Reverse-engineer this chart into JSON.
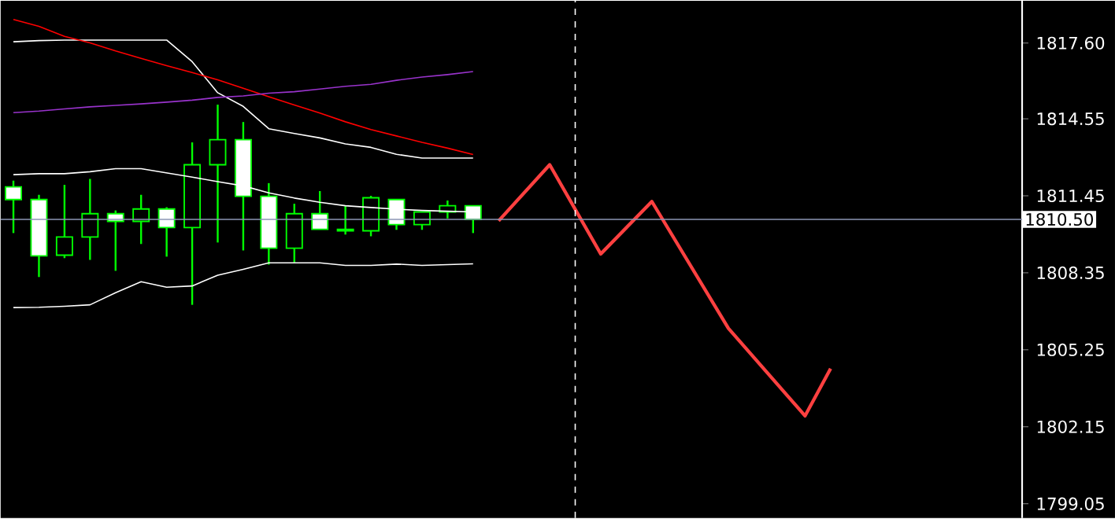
{
  "chart_data": {
    "type": "candlestick",
    "ylim": [
      1798.48,
      1819.3
    ],
    "tick_labels": "y",
    "categories": [
      null,
      null,
      null,
      null,
      null,
      null,
      null,
      null,
      null,
      null,
      null,
      null,
      null,
      null,
      null,
      null,
      null,
      null,
      null,
      null,
      null,
      null,
      null,
      null,
      null,
      null,
      null,
      null,
      null,
      null,
      null,
      null,
      null,
      null,
      null,
      null,
      null,
      null,
      null,
      null
    ],
    "yticks": [
      1799.05,
      1802.15,
      1805.25,
      1808.35,
      1811.45,
      1814.55,
      {
        "value": 1817.6,
        "label": "1817.60"
      }
    ],
    "ref_lines": [
      {
        "axis": "y",
        "value": 1810.5,
        "label": "1810.50",
        "color": "#8c96b4"
      }
    ],
    "series": [
      {
        "type": "line",
        "color": "#ffffff",
        "values": [
          1817.65,
          1817.7,
          1817.72,
          1817.72,
          1817.72,
          1817.72,
          1817.72,
          1816.85,
          1815.6,
          1815.05,
          1814.15,
          1813.96,
          1813.78,
          1813.54,
          1813.4,
          1813.12,
          1812.97,
          1812.97,
          1812.97,
          null,
          null,
          null,
          null,
          null,
          null,
          null,
          null,
          null,
          null,
          null,
          null,
          null,
          null,
          null,
          null,
          null,
          null,
          null,
          null,
          null
        ]
      },
      {
        "type": "line",
        "color": "#ffffff",
        "values": [
          1812.3,
          1812.34,
          1812.34,
          1812.42,
          1812.54,
          1812.54,
          1812.37,
          1812.2,
          1812.02,
          1811.85,
          1811.57,
          1811.36,
          1811.19,
          1811.05,
          1810.98,
          1810.91,
          1810.86,
          1810.83,
          1810.8,
          null,
          null,
          null,
          null,
          null,
          null,
          null,
          null,
          null,
          null,
          null,
          null,
          null,
          null,
          null,
          null,
          null,
          null,
          null,
          null,
          null
        ]
      },
      {
        "type": "line",
        "color": "#ffffff",
        "values": [
          1806.95,
          1806.96,
          1807.0,
          1807.06,
          1807.55,
          1807.99,
          1807.77,
          1807.82,
          1808.25,
          1808.49,
          1808.75,
          1808.75,
          1808.75,
          1808.65,
          1808.65,
          1808.7,
          1808.65,
          1808.68,
          1808.71,
          null,
          null,
          null,
          null,
          null,
          null,
          null,
          null,
          null,
          null,
          null,
          null,
          null,
          null,
          null,
          null,
          null,
          null,
          null,
          null,
          null
        ]
      },
      {
        "type": "line",
        "color": "#ff0000",
        "values": [
          1818.55,
          1818.27,
          1817.87,
          1817.61,
          1817.28,
          1816.98,
          1816.69,
          1816.41,
          1816.12,
          1815.78,
          1815.44,
          1815.11,
          1814.78,
          1814.43,
          1814.12,
          1813.86,
          1813.6,
          1813.37,
          1813.11,
          null,
          null,
          null,
          null,
          null,
          null,
          null,
          null,
          null,
          null,
          null,
          null,
          null,
          null,
          null,
          null,
          null,
          null,
          null,
          null,
          null
        ]
      },
      {
        "type": "line",
        "color": "#9933cc",
        "values": [
          1814.8,
          1814.86,
          1814.95,
          1815.03,
          1815.09,
          1815.15,
          1815.22,
          1815.3,
          1815.41,
          1815.47,
          1815.58,
          1815.64,
          1815.75,
          1815.86,
          1815.94,
          1816.1,
          1816.23,
          1816.33,
          1816.45,
          null,
          null,
          null,
          null,
          null,
          null,
          null,
          null,
          null,
          null,
          null,
          null,
          null,
          null,
          null,
          null,
          null,
          null,
          null,
          null,
          null
        ]
      },
      {
        "color": "#00ff00",
        "ohlc": [
          [
            1811.81,
            1812.06,
            1809.95,
            1811.3
          ],
          [
            1811.3,
            1811.49,
            1808.18,
            1809.03
          ],
          [
            1809.06,
            1811.89,
            1808.94,
            1809.79
          ],
          [
            1809.79,
            1812.13,
            1808.87,
            1810.73
          ],
          [
            1810.73,
            1810.86,
            1808.43,
            1810.42
          ],
          [
            1810.42,
            1811.49,
            1809.51,
            1810.92
          ],
          [
            1810.92,
            1810.99,
            1809.0,
            1810.17
          ],
          [
            1810.17,
            1813.6,
            1807.06,
            1812.7
          ],
          [
            1812.7,
            1815.12,
            1809.57,
            1813.71
          ],
          [
            1813.71,
            1814.42,
            1809.25,
            1811.43
          ],
          [
            1811.43,
            1811.96,
            1808.68,
            1809.34
          ],
          [
            1809.34,
            1811.13,
            1808.75,
            1810.73
          ],
          [
            1810.73,
            1811.64,
            1810.1,
            1810.1
          ],
          [
            1810.1,
            1811.05,
            1809.89,
            1810.04
          ],
          [
            1810.04,
            1811.45,
            1809.82,
            1811.37
          ],
          [
            1811.3,
            1811.3,
            1810.08,
            1810.29
          ],
          [
            1810.29,
            1810.8,
            1810.08,
            1810.8
          ],
          [
            1810.8,
            1811.26,
            1810.54,
            1811.05
          ],
          [
            1811.05,
            1811.05,
            1809.95,
            1810.5
          ],
          null,
          null,
          null,
          null,
          null,
          null,
          null,
          null,
          null,
          null,
          null,
          null,
          null,
          null,
          null,
          null,
          null,
          null,
          null,
          null,
          null
        ]
      },
      {
        "type": "line",
        "color": "#ff4040",
        "values": [
          null,
          null,
          null,
          null,
          null,
          null,
          null,
          null,
          null,
          null,
          null,
          null,
          null,
          null,
          null,
          null,
          null,
          null,
          null,
          1810.44,
          null,
          1812.7,
          null,
          1809.11,
          null,
          1811.22,
          null,
          null,
          1806.11,
          null,
          null,
          1802.59,
          1804.49,
          null,
          null,
          null,
          null,
          null,
          null,
          null
        ]
      }
    ]
  }
}
